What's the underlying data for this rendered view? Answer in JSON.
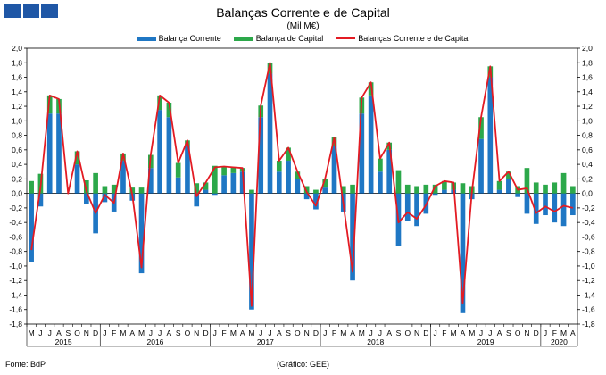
{
  "header": {
    "title": "Balanças Corrente e de Capital",
    "subtitle": "(Mil M€)"
  },
  "legend": {
    "items": [
      {
        "label": "Balança Corrente",
        "color": "#1f77c4",
        "kind": "bar"
      },
      {
        "label": "Balança de Capital",
        "color": "#2ca84a",
        "kind": "bar"
      },
      {
        "label": "Balanças Corrente e de Capital",
        "color": "#e31b23",
        "kind": "line"
      }
    ]
  },
  "footer": {
    "source": "Fonte: BdP",
    "credit": "(Gráfico: GEE)"
  },
  "chart_data": {
    "type": "bar",
    "ylim": [
      -1.8,
      2.0
    ],
    "yticks": [
      "2,0",
      "1,8",
      "1,6",
      "1,4",
      "1,2",
      "1,0",
      "0,8",
      "0,6",
      "0,4",
      "0,2",
      "0,0",
      "-0,2",
      "-0,4",
      "-0,6",
      "-0,8",
      "-1,0",
      "-1,2",
      "-1,4",
      "-1,6",
      "-1,8"
    ],
    "categories": [
      "M",
      "J",
      "J",
      "A",
      "S",
      "O",
      "N",
      "D",
      "J",
      "F",
      "M",
      "A",
      "M",
      "J",
      "J",
      "A",
      "S",
      "O",
      "N",
      "D",
      "J",
      "F",
      "M",
      "A",
      "M",
      "J",
      "J",
      "A",
      "S",
      "O",
      "N",
      "D",
      "J",
      "F",
      "M",
      "A",
      "M",
      "J",
      "J",
      "A",
      "S",
      "O",
      "N",
      "D",
      "J",
      "F",
      "M",
      "A",
      "M",
      "J",
      "J",
      "A",
      "S",
      "O",
      "N",
      "D",
      "J",
      "F",
      "M",
      "A"
    ],
    "years": [
      {
        "label": "2015",
        "start": 0,
        "end": 7
      },
      {
        "label": "2016",
        "start": 8,
        "end": 19
      },
      {
        "label": "2017",
        "start": 20,
        "end": 31
      },
      {
        "label": "2018",
        "start": 32,
        "end": 43
      },
      {
        "label": "2019",
        "start": 44,
        "end": 55
      },
      {
        "label": "2020",
        "start": 56,
        "end": 59
      }
    ],
    "series": [
      {
        "name": "Balança Corrente",
        "type": "bar",
        "color": "#1f77c4",
        "values": [
          -0.95,
          -0.18,
          1.1,
          1.1,
          0.0,
          0.4,
          -0.15,
          -0.55,
          -0.12,
          -0.25,
          0.45,
          -0.1,
          -1.1,
          0.35,
          1.15,
          1.05,
          0.22,
          0.65,
          -0.18,
          0.05,
          -0.02,
          0.25,
          0.28,
          0.3,
          -1.6,
          1.05,
          1.65,
          0.3,
          0.45,
          0.2,
          -0.08,
          -0.22,
          0.08,
          0.65,
          -0.25,
          -1.2,
          1.1,
          1.35,
          0.3,
          0.6,
          -0.72,
          -0.38,
          -0.45,
          -0.28,
          -0.02,
          0.05,
          0.05,
          -1.65,
          -0.08,
          0.75,
          1.6,
          0.05,
          0.2,
          -0.05,
          -0.28,
          -0.42,
          -0.3,
          -0.4,
          -0.45,
          -0.3
        ]
      },
      {
        "name": "Balança de Capital",
        "type": "bar",
        "color": "#2ca84a",
        "values": [
          0.17,
          0.27,
          0.25,
          0.2,
          0.0,
          0.18,
          0.18,
          0.28,
          0.1,
          0.12,
          0.1,
          0.08,
          0.08,
          0.18,
          0.2,
          0.2,
          0.2,
          0.08,
          0.14,
          0.1,
          0.38,
          0.12,
          0.08,
          0.05,
          0.05,
          0.16,
          0.15,
          0.15,
          0.18,
          0.1,
          0.1,
          0.05,
          0.12,
          0.12,
          0.1,
          0.12,
          0.22,
          0.18,
          0.18,
          0.1,
          0.32,
          0.12,
          0.1,
          0.12,
          0.12,
          0.12,
          0.1,
          0.14,
          0.1,
          0.3,
          0.15,
          0.12,
          0.1,
          0.1,
          0.35,
          0.15,
          0.12,
          0.15,
          0.28,
          0.1
        ]
      },
      {
        "name": "Balanças Corrente e de Capital",
        "type": "line",
        "color": "#e31b23",
        "values": [
          -0.78,
          0.09,
          1.35,
          1.3,
          0.0,
          0.58,
          0.03,
          -0.27,
          -0.02,
          -0.13,
          0.55,
          -0.02,
          -1.02,
          0.53,
          1.35,
          1.25,
          0.42,
          0.73,
          -0.04,
          0.15,
          0.36,
          0.37,
          0.36,
          0.35,
          -1.55,
          1.21,
          1.8,
          0.45,
          0.63,
          0.3,
          0.02,
          -0.17,
          0.2,
          0.77,
          -0.15,
          -1.08,
          1.32,
          1.53,
          0.48,
          0.7,
          -0.4,
          -0.26,
          -0.35,
          -0.16,
          0.1,
          0.17,
          0.15,
          -1.51,
          0.02,
          1.05,
          1.75,
          0.17,
          0.3,
          0.05,
          0.07,
          -0.27,
          -0.18,
          -0.25,
          -0.17,
          -0.2
        ]
      }
    ]
  }
}
